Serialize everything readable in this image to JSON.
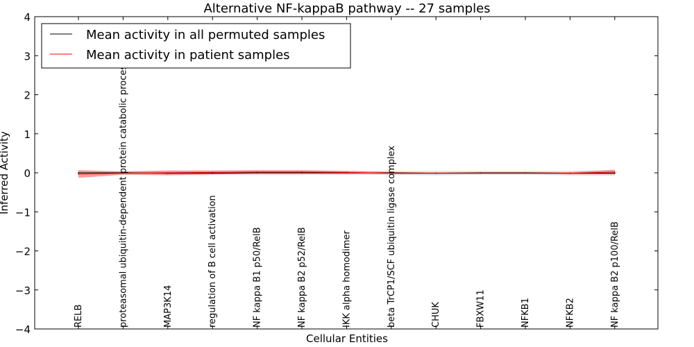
{
  "chart_data": {
    "type": "line",
    "title": "Alternative NF-kappaB pathway -- 27 samples",
    "xlabel": "Cellular Entities",
    "ylabel": "Inferred Activity",
    "ylim": [
      -4,
      4
    ],
    "yticks": [
      -4,
      -3,
      -2,
      -1,
      0,
      1,
      2,
      3,
      4
    ],
    "ytick_labels": [
      "−4",
      "−3",
      "−2",
      "−1",
      "0",
      "1",
      "2",
      "3",
      "4"
    ],
    "legend_position": "top-left",
    "categories": [
      "RELB",
      "proteasomal ubiquitin-dependent protein catabolic process",
      "MAP3K14",
      "regulation of B cell activation",
      "NF kappa B1 p50/RelB",
      "NF kappa B2 p52/RelB",
      "IKK alpha homodimer",
      "beta TrCP1/SCF ubiquitin ligase complex",
      "CHUK",
      "FBXW11",
      "NFKB1",
      "NFKB2",
      "NF kappa B2 p100/RelB"
    ],
    "series": [
      {
        "name": "Mean activity in all permuted samples",
        "color": "#000000",
        "band_color": "#cccccc",
        "values": [
          0,
          0,
          -0.01,
          -0.01,
          0,
          0,
          0,
          0,
          -0.01,
          0,
          0,
          -0.01,
          -0.01
        ],
        "band_halfwidth": [
          0.05,
          0.05,
          0.06,
          0.05,
          0.05,
          0.05,
          0.05,
          0.05,
          0.06,
          0.05,
          0.05,
          0.06,
          0.07
        ]
      },
      {
        "name": "Mean activity in patient samples",
        "color": "#ff0000",
        "band_color": "#f08080",
        "values": [
          -0.03,
          -0.01,
          0,
          0.01,
          0.02,
          0.02,
          0.01,
          -0.01,
          -0.01,
          -0.01,
          -0.01,
          -0.01,
          0.02
        ],
        "band_halfwidth": [
          0.1,
          0.04,
          0.06,
          0.05,
          0.05,
          0.05,
          0.04,
          0.03,
          0.02,
          0.02,
          0.02,
          0.03,
          0.06
        ]
      }
    ]
  }
}
